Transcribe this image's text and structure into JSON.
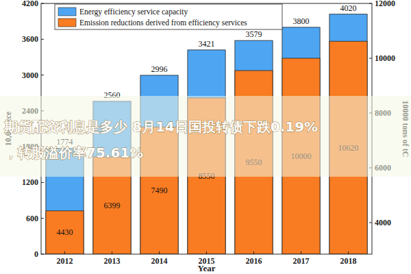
{
  "chart_data": {
    "type": "bar",
    "x_label": "Year",
    "y_label": "10,000 tce",
    "y2_label": "10000 tons of tC",
    "categories": [
      "2012",
      "2013",
      "2014",
      "2015",
      "2016",
      "2017",
      "2018"
    ],
    "series": [
      {
        "name": "Energy efficiency service capacity",
        "color": "#4ea6f3",
        "values": [
          1774,
          2560,
          2996,
          3421,
          3579,
          3800,
          4020
        ]
      },
      {
        "name": "Emission reductions derived from efficiency services",
        "color": "#f97c22",
        "axis": "y2",
        "values": [
          4430,
          6399,
          7490,
          8550,
          9550,
          10000,
          10620
        ]
      }
    ],
    "ylim": [
      0,
      4200
    ],
    "yticks": [
      0,
      600,
      1200,
      1800,
      2400,
      3000,
      3600,
      4200
    ],
    "y2lim": [
      2850,
      12000
    ],
    "y2ticks": [
      4000,
      6000,
      8000,
      10000,
      12000
    ],
    "stacked": false,
    "data_labels": true,
    "legend": "upper left",
    "annotations": [
      "期货配资利息是多少 8月14日国投转债下跌0.19%",
      "，转股溢价率75.61%"
    ]
  }
}
